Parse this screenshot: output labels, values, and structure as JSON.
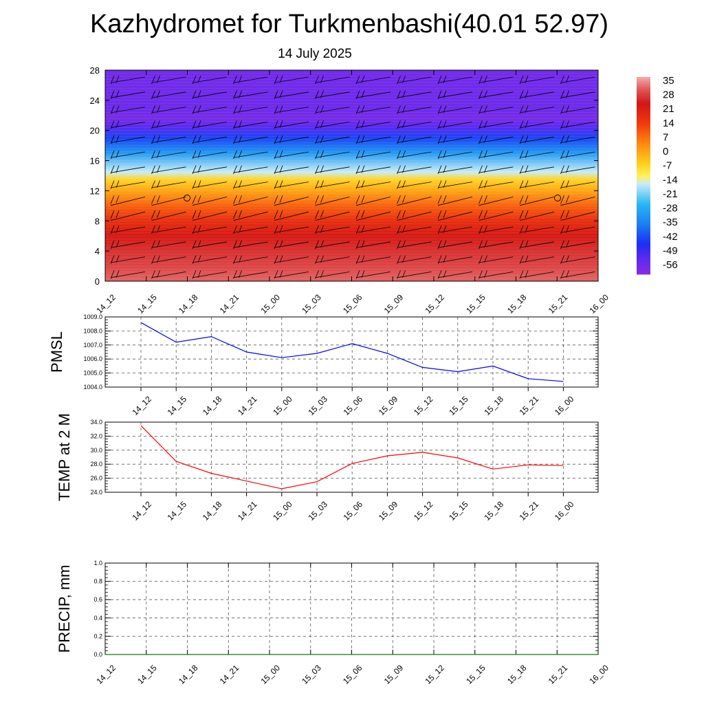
{
  "title": "Kazhydromet for Turkmenbashi(40.01 52.97)",
  "subtitle": "14 July 2025",
  "chart_data": [
    {
      "type": "heatmap",
      "y_ticks": [
        "0",
        "4",
        "8",
        "12",
        "16",
        "20",
        "24",
        "28"
      ],
      "ylim": [
        0,
        28
      ],
      "x_ticks": [
        "14_12",
        "14_15",
        "14_18",
        "14_21",
        "15_00",
        "15_03",
        "15_06",
        "15_09",
        "15_12",
        "15_15",
        "15_18",
        "15_21",
        "16_00"
      ],
      "colorbar_labels": [
        "35",
        "28",
        "21",
        "14",
        "7",
        "0",
        "-7",
        "-14",
        "-21",
        "-28",
        "-35",
        "-42",
        "-49",
        "-56"
      ],
      "colorbar_range": [
        -60,
        38
      ],
      "profile": [
        {
          "y": 0,
          "value": 33
        },
        {
          "y": 2,
          "value": 30
        },
        {
          "y": 4,
          "value": 28
        },
        {
          "y": 6,
          "value": 24
        },
        {
          "y": 8,
          "value": 18
        },
        {
          "y": 10,
          "value": 10
        },
        {
          "y": 12,
          "value": 1
        },
        {
          "y": 13.5,
          "value": -6
        },
        {
          "y": 14.5,
          "value": -15
        },
        {
          "y": 17,
          "value": -30
        },
        {
          "y": 19,
          "value": -42
        },
        {
          "y": 20.5,
          "value": -52
        },
        {
          "y": 21.5,
          "value": -57
        },
        {
          "y": 23,
          "value": -55
        },
        {
          "y": 28,
          "value": -56
        }
      ],
      "wind_barbs": "present"
    },
    {
      "type": "line",
      "ylabel": "PMSL",
      "x": [
        "14_12",
        "14_15",
        "14_18",
        "14_21",
        "15_00",
        "15_03",
        "15_06",
        "15_09",
        "15_12",
        "15_15",
        "15_18",
        "15_21",
        "16_00"
      ],
      "y_ticks": [
        "1004.0",
        "1005.0",
        "1006.0",
        "1007.0",
        "1008.0",
        "1009.0"
      ],
      "ylim": [
        1004,
        1009
      ],
      "grid": true,
      "series": [
        {
          "color": "#0000ff",
          "values": [
            1008.6,
            1007.2,
            1007.6,
            1006.5,
            1006.1,
            1006.4,
            1007.1,
            1006.4,
            1005.4,
            1005.1,
            1005.5,
            1004.6,
            1004.4
          ]
        }
      ]
    },
    {
      "type": "line",
      "ylabel": "TEMP at 2 M",
      "x": [
        "14_12",
        "14_15",
        "14_18",
        "14_21",
        "15_00",
        "15_03",
        "15_06",
        "15_09",
        "15_12",
        "15_15",
        "15_18",
        "15_21",
        "16_00"
      ],
      "y_ticks": [
        "24.0",
        "26.0",
        "28.0",
        "30.0",
        "32.0",
        "34.0"
      ],
      "ylim": [
        24,
        34
      ],
      "grid": true,
      "series": [
        {
          "color": "#ff0000",
          "values": [
            33.5,
            28.4,
            26.7,
            25.6,
            24.5,
            25.5,
            28.1,
            29.2,
            29.7,
            28.9,
            27.3,
            27.9,
            27.8
          ]
        }
      ]
    },
    {
      "type": "line",
      "ylabel": "PRECIP, mm",
      "x": [
        "14_12",
        "14_15",
        "14_18",
        "14_21",
        "15_00",
        "15_03",
        "15_06",
        "15_09",
        "15_12",
        "15_15",
        "15_18",
        "15_21",
        "16_00"
      ],
      "y_ticks": [
        "0.0",
        "0.2",
        "0.4",
        "0.6",
        "0.8",
        "1.0"
      ],
      "ylim": [
        0,
        1
      ],
      "grid": true,
      "series": [
        {
          "color": "#008000",
          "values": [
            0,
            0,
            0,
            0,
            0,
            0,
            0,
            0,
            0,
            0,
            0,
            0,
            0
          ]
        }
      ]
    }
  ]
}
